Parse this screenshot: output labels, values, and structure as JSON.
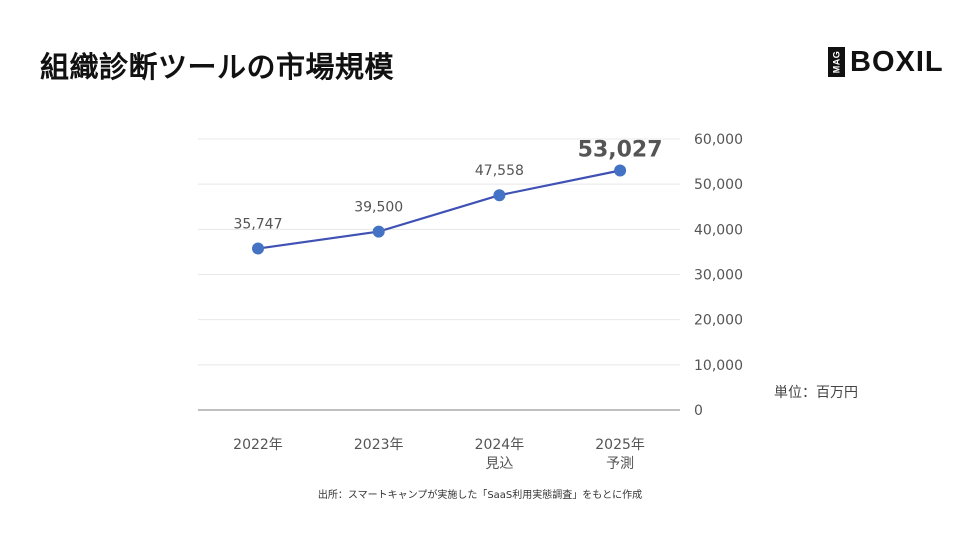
{
  "title": "組織診断ツールの市場規模",
  "logo": {
    "badge": "MAG",
    "text": "BOXIL"
  },
  "unit_label": "単位：百万円",
  "source": "出所：スマートキャンプが実施した「SaaS利用実態調査」をもとに作成",
  "colors": {
    "line": "#3f51b5",
    "point": "#4472c4",
    "grid": "#e8e8e8",
    "baseline": "#999999",
    "text": "#555555",
    "highlight": "#555555"
  },
  "chart_data": {
    "type": "line",
    "categories": [
      {
        "line1": "2022年",
        "line2": ""
      },
      {
        "line1": "2023年",
        "line2": ""
      },
      {
        "line1": "2024年",
        "line2": "見込"
      },
      {
        "line1": "2025年",
        "line2": "予測"
      }
    ],
    "values": [
      35747,
      39500,
      47558,
      53027
    ],
    "value_labels": [
      "35,747",
      "39,500",
      "47,558",
      "53,027"
    ],
    "highlighted_index": 3,
    "ylim": [
      0,
      60000
    ],
    "yticks": [
      0,
      10000,
      20000,
      30000,
      40000,
      50000,
      60000
    ],
    "ytick_labels": [
      "0",
      "10,000",
      "20,000",
      "30,000",
      "40,000",
      "50,000",
      "60,000"
    ],
    "y_axis_position": "right",
    "grid": true,
    "legend": "none"
  }
}
